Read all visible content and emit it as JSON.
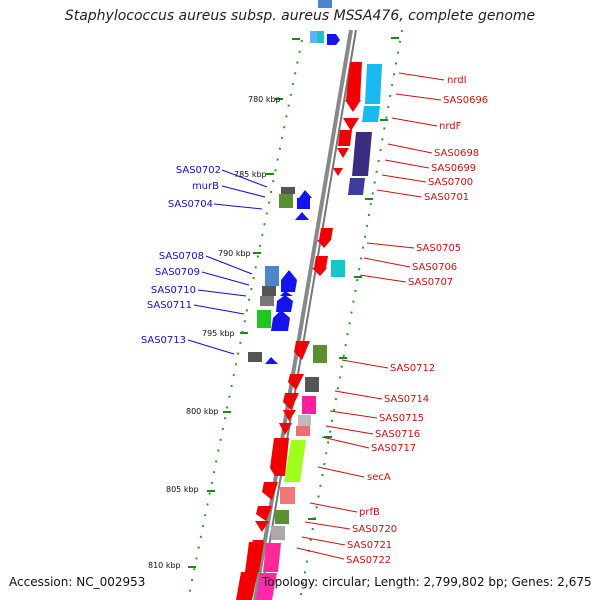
{
  "header": {
    "title": "Staphylococcus aureus subsp. aureus MSSA476, complete genome"
  },
  "footer": {
    "accession": "Accession: NC_002953",
    "summary": "Topology: circular; Length: 2,799,802 bp; Genes: 2,675"
  },
  "colors": {
    "backbone": "#8c8c8c",
    "tick": "#1a8a1a",
    "plus_label": "#1010c8",
    "minus_label": "#d01010"
  },
  "ruler_labels": [
    "780 kbp",
    "785 kbp",
    "790 kbp",
    "795 kbp",
    "800 kbp",
    "805 kbp",
    "810 kbp"
  ],
  "plus_labels": [
    "SAS0702",
    "murB",
    "SAS0704",
    "SAS0708",
    "SAS0709",
    "SAS0710",
    "SAS0711",
    "SAS0713"
  ],
  "minus_labels": [
    "nrdI",
    "SAS0696",
    "nrdF",
    "SAS0698",
    "SAS0699",
    "SAS0700",
    "SAS0701",
    "SAS0705",
    "SAS0706",
    "SAS0707",
    "SAS0712",
    "SAS0714",
    "SAS0715",
    "SAS0716",
    "SAS0717",
    "secA",
    "prfB",
    "SAS0720",
    "SAS0721",
    "SAS0722"
  ]
}
